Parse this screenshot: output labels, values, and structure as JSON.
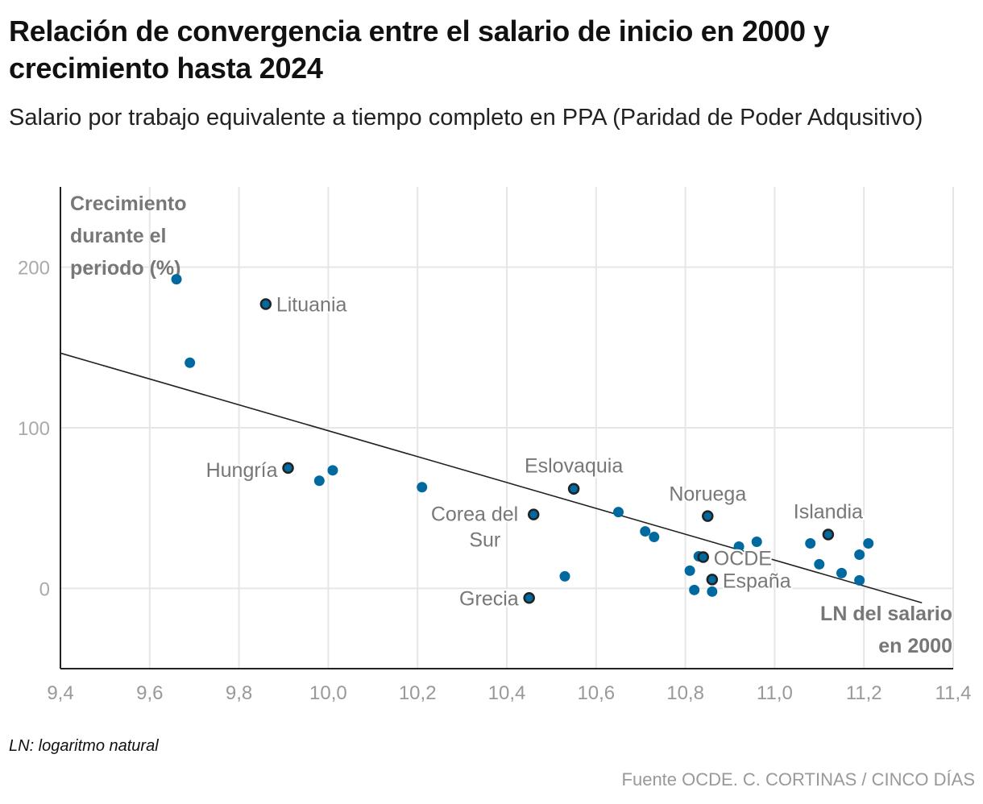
{
  "title": "Relación de convergencia entre el salario de inicio en 2000 y crecimiento hasta 2024",
  "subtitle": "Salario por trabajo equivalente a tiempo completo en PPA (Paridad de Poder Adqusitivo)",
  "note": "LN: logaritmo natural",
  "source": "Fuente OCDE. C. CORTINAS / CINCO DÍAS",
  "chart_data": {
    "type": "scatter",
    "ylabel": "Crecimiento durante el periodo (%)",
    "xlabel": "LN del salario en 2000",
    "xlim": [
      9.4,
      11.4
    ],
    "ylim": [
      -50,
      250
    ],
    "xticks": [
      "9,4",
      "9,6",
      "9,8",
      "10,0",
      "10,2",
      "10,4",
      "10,6",
      "10,8",
      "11,0",
      "11,2",
      "11,4"
    ],
    "yticks": [
      0,
      100,
      200
    ],
    "grid": true,
    "colors": {
      "point": "#006aa0",
      "outline": "#222222",
      "trend": "#222222"
    },
    "trendline": {
      "x": [
        9.4,
        11.33
      ],
      "y": [
        146.5,
        -9
      ]
    },
    "points": [
      {
        "x": 9.66,
        "y": 192.5
      },
      {
        "x": 9.69,
        "y": 140.5
      },
      {
        "x": 9.86,
        "y": 177,
        "label": "Lituania"
      },
      {
        "x": 9.91,
        "y": 75,
        "label": "Hungría"
      },
      {
        "x": 9.98,
        "y": 67
      },
      {
        "x": 10.01,
        "y": 73.5
      },
      {
        "x": 10.21,
        "y": 63
      },
      {
        "x": 10.45,
        "y": -6,
        "label": "Grecia"
      },
      {
        "x": 10.46,
        "y": 46,
        "label": "Corea del Sur"
      },
      {
        "x": 10.53,
        "y": 7.5
      },
      {
        "x": 10.55,
        "y": 62,
        "label": "Eslovaquia"
      },
      {
        "x": 10.65,
        "y": 47.5
      },
      {
        "x": 10.71,
        "y": 35.5
      },
      {
        "x": 10.73,
        "y": 32
      },
      {
        "x": 10.85,
        "y": 45,
        "label": "Noruega"
      },
      {
        "x": 10.81,
        "y": 11
      },
      {
        "x": 10.82,
        "y": -1
      },
      {
        "x": 10.83,
        "y": 20
      },
      {
        "x": 10.92,
        "y": 26
      },
      {
        "x": 10.96,
        "y": 29
      },
      {
        "x": 10.86,
        "y": -2
      },
      {
        "x": 10.84,
        "y": 19.5,
        "label": "OCDE"
      },
      {
        "x": 10.86,
        "y": 5.5,
        "label": "España"
      },
      {
        "x": 11.08,
        "y": 28
      },
      {
        "x": 11.1,
        "y": 15
      },
      {
        "x": 11.15,
        "y": 9.5
      },
      {
        "x": 11.19,
        "y": 21
      },
      {
        "x": 11.21,
        "y": 28
      },
      {
        "x": 11.19,
        "y": 5
      },
      {
        "x": 11.12,
        "y": 33.5,
        "label": "Islandia"
      }
    ]
  }
}
